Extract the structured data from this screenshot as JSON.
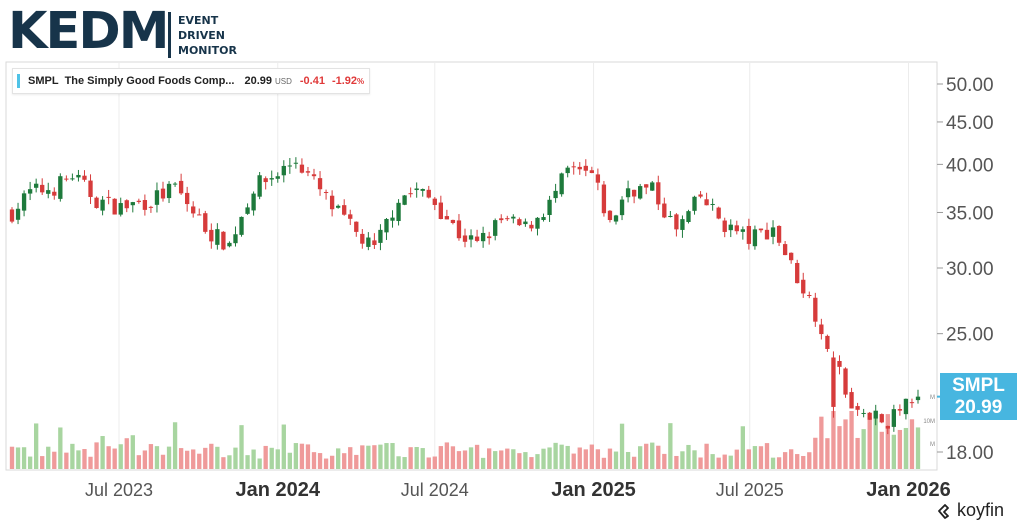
{
  "logo": {
    "text": "KEDM",
    "tagline": [
      "EVENT",
      "DRIVEN",
      "MONITOR"
    ]
  },
  "legend": {
    "ticker": "SMPL",
    "name": "The Simply Good Foods Comp...",
    "price": "20.99",
    "currency": "USD",
    "change": "-0.41",
    "change_pct": "-1.92",
    "pct_sign": "%"
  },
  "price_tag": {
    "ticker": "SMPL",
    "price": "20.99"
  },
  "brand": {
    "text": "koyfin"
  },
  "colors": {
    "up": "#1e7a3c",
    "down": "#d63b3b",
    "vol_up": "#a8d5a0",
    "vol_down": "#ef9a9a",
    "accent": "#47b6e0"
  },
  "chart_data": {
    "type": "candlestick",
    "ticker": "SMPL",
    "y_scale": "log",
    "ylim": [
      17.5,
      52
    ],
    "y_ticks": [
      "50.00",
      "45.00",
      "40.00",
      "35.00",
      "30.00",
      "25.00",
      "18.00"
    ],
    "y_tick_values": [
      50,
      45,
      40,
      35,
      30,
      25,
      18
    ],
    "x_ticks": [
      {
        "label": "Jul 2023",
        "date": "2023-07-01",
        "bold": false
      },
      {
        "label": "Jan 2024",
        "date": "2024-01-01",
        "bold": true
      },
      {
        "label": "Jul 2024",
        "date": "2024-07-01",
        "bold": false
      },
      {
        "label": "Jan 2025",
        "date": "2025-01-01",
        "bold": true
      },
      {
        "label": "Jul 2025",
        "date": "2025-07-01",
        "bold": false
      },
      {
        "label": "Jan 2026",
        "date": "2026-01-01",
        "bold": true
      }
    ],
    "volume_ticks": [
      "M",
      "10M",
      "M"
    ],
    "grid": "vertical",
    "candle_period": "weekly",
    "start_date": "2023-02-27",
    "end_date": "2026-01-12",
    "close_anchors": [
      [
        "2023-02-27",
        35.0
      ],
      [
        "2023-03-20",
        37.0
      ],
      [
        "2023-04-17",
        37.5
      ],
      [
        "2023-05-08",
        38.8
      ],
      [
        "2023-06-05",
        36.2
      ],
      [
        "2023-07-03",
        35.5
      ],
      [
        "2023-08-07",
        36.2
      ],
      [
        "2023-09-04",
        37.5
      ],
      [
        "2023-09-25",
        35.0
      ],
      [
        "2023-10-16",
        33.0
      ],
      [
        "2023-11-06",
        32.0
      ],
      [
        "2023-12-04",
        37.5
      ],
      [
        "2024-01-01",
        39.0
      ],
      [
        "2024-01-22",
        40.5
      ],
      [
        "2024-02-12",
        38.0
      ],
      [
        "2024-03-04",
        35.5
      ],
      [
        "2024-04-01",
        33.0
      ],
      [
        "2024-04-22",
        31.5
      ],
      [
        "2024-05-20",
        36.5
      ],
      [
        "2024-06-10",
        37.2
      ],
      [
        "2024-07-01",
        36.0
      ],
      [
        "2024-07-29",
        33.0
      ],
      [
        "2024-08-19",
        32.0
      ],
      [
        "2024-09-16",
        34.2
      ],
      [
        "2024-10-14",
        33.5
      ],
      [
        "2024-11-11",
        35.8
      ],
      [
        "2024-12-02",
        39.2
      ],
      [
        "2024-12-30",
        38.8
      ],
      [
        "2025-01-20",
        33.8
      ],
      [
        "2025-02-10",
        37.5
      ],
      [
        "2025-03-10",
        37.2
      ],
      [
        "2025-04-07",
        33.2
      ],
      [
        "2025-05-05",
        36.5
      ],
      [
        "2025-06-02",
        33.8
      ],
      [
        "2025-06-30",
        32.5
      ],
      [
        "2025-07-28",
        33.5
      ],
      [
        "2025-08-18",
        30.2
      ],
      [
        "2025-09-08",
        27.5
      ],
      [
        "2025-10-06",
        23.5
      ],
      [
        "2025-10-27",
        20.0
      ],
      [
        "2025-11-17",
        20.0
      ],
      [
        "2025-12-08",
        19.5
      ],
      [
        "2025-12-29",
        20.5
      ],
      [
        "2026-01-12",
        21.4
      ]
    ],
    "last": 20.99
  }
}
